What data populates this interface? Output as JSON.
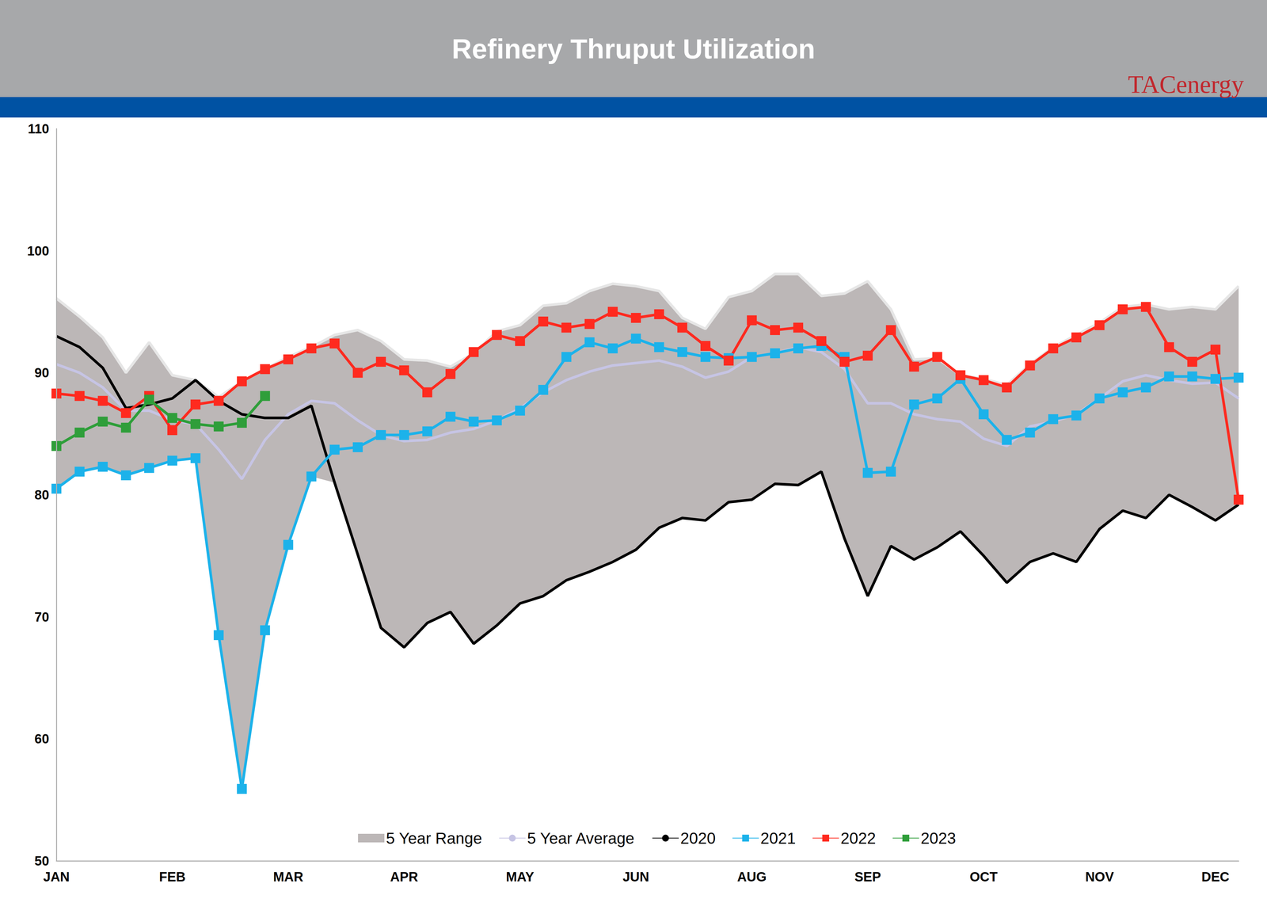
{
  "chart_data": {
    "type": "line",
    "title": "Refinery Thruput Utilization",
    "source": "TACenergy",
    "categories": [
      "JAN",
      null,
      null,
      null,
      null,
      "FEB",
      null,
      null,
      null,
      null,
      "MAR",
      null,
      null,
      null,
      null,
      "APR",
      null,
      null,
      null,
      null,
      "MAY",
      null,
      null,
      null,
      null,
      "JUN",
      null,
      null,
      null,
      null,
      "AUG",
      null,
      null,
      null,
      null,
      "SEP",
      null,
      null,
      null,
      null,
      "OCT",
      null,
      null,
      null,
      null,
      "NOV",
      null,
      null,
      null,
      null,
      "DEC",
      null
    ],
    "ylim": [
      50,
      110
    ],
    "yticks": [
      50,
      60,
      70,
      80,
      90,
      100,
      110
    ],
    "grid": false,
    "legend": "bottom",
    "series": [
      {
        "name": "5 Year Range",
        "type": "range",
        "color": "#bcb7b7",
        "high": [
          96.1,
          94.6,
          92.9,
          90.0,
          92.5,
          89.8,
          89.4,
          88.0,
          89.3,
          90.3,
          91.3,
          92.1,
          93.1,
          93.5,
          92.6,
          91.1,
          91.0,
          90.5,
          91.6,
          93.4,
          93.9,
          95.5,
          95.7,
          96.7,
          97.3,
          97.1,
          96.7,
          94.5,
          93.6,
          96.2,
          96.7,
          98.1,
          98.1,
          96.3,
          96.5,
          97.5,
          95.2,
          91.1,
          91.2,
          89.8,
          89.5,
          89.0,
          90.7,
          92.1,
          93.1,
          94.1,
          95.4,
          95.6,
          95.2,
          95.4,
          95.2,
          97.1
        ],
        "low": [
          80.5,
          81.9,
          82.3,
          81.6,
          82.2,
          82.8,
          83.0,
          68.5,
          55.9,
          68.9,
          75.9,
          81.5,
          81.0,
          75.1,
          69.1,
          67.5,
          69.5,
          70.4,
          67.8,
          69.3,
          71.1,
          71.7,
          73.0,
          73.7,
          74.5,
          75.5,
          77.3,
          78.1,
          77.9,
          79.4,
          79.6,
          80.9,
          80.8,
          81.9,
          76.4,
          71.7,
          75.8,
          74.7,
          75.7,
          77.0,
          75.0,
          72.8,
          74.5,
          75.2,
          74.5,
          77.2,
          78.7,
          78.1,
          80.0,
          79.0,
          77.9,
          79.2
        ]
      },
      {
        "name": "5 Year Average",
        "type": "line",
        "color": "#c6c4e4",
        "marker": "none",
        "values": [
          90.7,
          90.0,
          88.8,
          86.9,
          86.9,
          86.1,
          85.8,
          83.7,
          81.3,
          84.5,
          86.6,
          87.7,
          87.5,
          86.1,
          84.9,
          84.4,
          84.5,
          85.1,
          85.4,
          86.1,
          87.1,
          88.4,
          89.4,
          90.1,
          90.6,
          90.8,
          91.0,
          90.5,
          89.6,
          90.1,
          91.3,
          91.6,
          92.1,
          91.7,
          90.3,
          87.5,
          87.5,
          86.6,
          86.2,
          86.0,
          84.6,
          84.0,
          85.6,
          86.0,
          86.6,
          87.9,
          89.3,
          89.8,
          89.4,
          89.1,
          89.2,
          87.9
        ]
      },
      {
        "name": "2020",
        "type": "line",
        "color": "#000000",
        "marker": "none",
        "values": [
          93.0,
          92.1,
          90.4,
          87.1,
          87.4,
          87.9,
          89.4,
          87.7,
          86.6,
          86.3,
          86.3,
          87.3,
          81.0,
          75.1,
          69.1,
          67.5,
          69.5,
          70.4,
          67.8,
          69.3,
          71.1,
          71.7,
          73.0,
          73.7,
          74.5,
          75.5,
          77.3,
          78.1,
          77.9,
          79.4,
          79.6,
          80.9,
          80.8,
          81.9,
          76.4,
          71.7,
          75.8,
          74.7,
          75.7,
          77.0,
          75.0,
          72.8,
          74.5,
          75.2,
          74.5,
          77.2,
          78.7,
          78.1,
          80.0,
          79.0,
          77.9,
          79.2
        ]
      },
      {
        "name": "2021",
        "type": "line",
        "color": "#1cb2ea",
        "marker": "square",
        "values": [
          80.5,
          81.9,
          82.3,
          81.6,
          82.2,
          82.8,
          83.0,
          68.5,
          55.9,
          68.9,
          75.9,
          81.5,
          83.7,
          83.9,
          84.9,
          84.9,
          85.2,
          86.4,
          86.0,
          86.1,
          86.9,
          88.6,
          91.3,
          92.5,
          92.0,
          92.8,
          92.1,
          91.7,
          91.3,
          91.2,
          91.3,
          91.6,
          92.0,
          92.2,
          91.3,
          81.8,
          81.9,
          87.4,
          87.9,
          89.5,
          86.6,
          84.5,
          85.1,
          86.2,
          86.5,
          87.9,
          88.4,
          88.8,
          89.7,
          89.7,
          89.5,
          89.6
        ]
      },
      {
        "name": "2022",
        "type": "line",
        "color": "#ff2a1f",
        "marker": "square",
        "values": [
          88.3,
          88.1,
          87.7,
          86.7,
          88.1,
          85.3,
          87.4,
          87.7,
          89.3,
          90.3,
          91.1,
          92.0,
          92.4,
          90.0,
          90.9,
          90.2,
          88.4,
          89.9,
          91.7,
          93.1,
          92.6,
          94.2,
          93.7,
          94.0,
          95.0,
          94.5,
          94.8,
          93.7,
          92.2,
          91.0,
          94.3,
          93.5,
          93.7,
          92.6,
          90.9,
          91.4,
          93.5,
          90.5,
          91.3,
          89.8,
          89.4,
          88.8,
          90.6,
          92.0,
          92.9,
          93.9,
          95.2,
          95.4,
          92.1,
          90.9,
          91.9,
          79.6
        ]
      },
      {
        "name": "2023",
        "type": "line",
        "color": "#2f9e3a",
        "marker": "square",
        "values": [
          84.0,
          85.1,
          86.0,
          85.5,
          87.8,
          86.3,
          85.8,
          85.6,
          85.9,
          88.1,
          null,
          null,
          null,
          null,
          null,
          null,
          null,
          null,
          null,
          null,
          null,
          null,
          null,
          null,
          null,
          null,
          null,
          null,
          null,
          null,
          null,
          null,
          null,
          null,
          null,
          null,
          null,
          null,
          null,
          null,
          null,
          null,
          null,
          null,
          null,
          null,
          null,
          null,
          null,
          null,
          null,
          null
        ]
      }
    ]
  }
}
